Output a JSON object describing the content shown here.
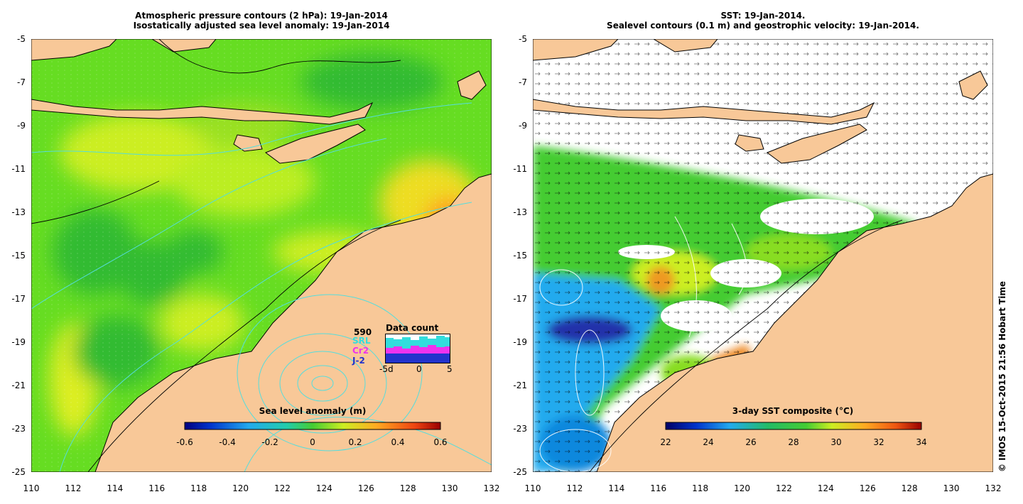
{
  "left_panel": {
    "title_line1": "Atmospheric pressure contours (2 hPa): 19-Jan-2014",
    "title_line2": "Isostatically adjusted sea level anomaly: 19-Jan-2014",
    "colorbar": {
      "title": "Sea level anomaly (m)",
      "ticks": [
        "-0.6",
        "-0.4",
        "-0.2",
        "0",
        "0.2",
        "0.4",
        "0.6"
      ]
    },
    "data_count": {
      "title": "Data count",
      "total": "590",
      "missions": [
        {
          "name": "SRL",
          "color": "#33dddd"
        },
        {
          "name": "Cr2",
          "color": "#ee33ee"
        },
        {
          "name": "J-2",
          "color": "#2233cc"
        }
      ],
      "x_ticks": [
        "-5d",
        "0",
        "5"
      ]
    }
  },
  "right_panel": {
    "title_line1": "SST: 19-Jan-2014.",
    "title_line2": "Sealevel contours (0.1 m) and geostrophic velocity: 19-Jan-2014.",
    "colorbar": {
      "title": "3-day SST composite (°C)",
      "ticks": [
        "22",
        "24",
        "26",
        "28",
        "30",
        "32",
        "34"
      ]
    }
  },
  "axes": {
    "x_ticks": [
      "110",
      "112",
      "114",
      "116",
      "118",
      "120",
      "122",
      "124",
      "126",
      "128",
      "130",
      "132"
    ],
    "y_ticks": [
      "-5",
      "-7",
      "-9",
      "-11",
      "-13",
      "-15",
      "-17",
      "-19",
      "-21",
      "-23",
      "-25"
    ],
    "lon_range": [
      110,
      132
    ],
    "lat_range": [
      -25,
      -5
    ]
  },
  "credit": "© IMOS 15-Oct-2015 21:56 Hobart Time"
}
